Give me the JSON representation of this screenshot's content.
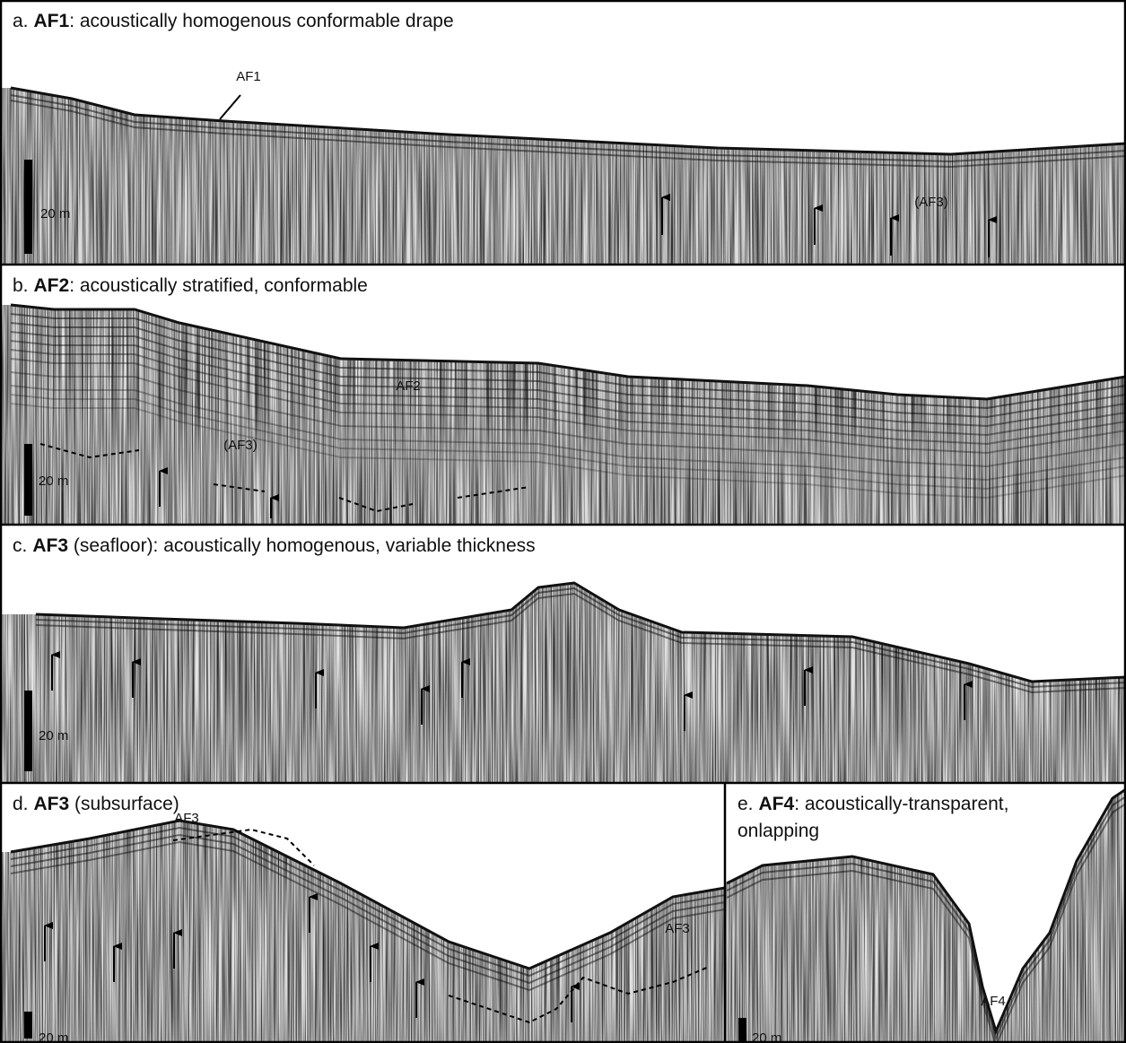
{
  "panels": [
    {
      "letter": "a.",
      "code": "AF1",
      "caption": ": acoustically homogenous conformable drape",
      "scale": "20 m",
      "labels": [
        "AF1",
        "(AF3)"
      ]
    },
    {
      "letter": "b.",
      "code": "AF2",
      "caption": ": acoustically stratified, conformable",
      "scale": "20 m",
      "labels": [
        "AF2",
        "(AF3)"
      ]
    },
    {
      "letter": "c.",
      "code": "AF3",
      "caption": " (seafloor): acoustically homogenous, variable thickness",
      "scale": "20 m",
      "labels": []
    },
    {
      "letter": "d.",
      "code": "AF3",
      "caption": " (subsurface)",
      "scale": "20 m",
      "labels": [
        "AF3",
        "AF3"
      ]
    },
    {
      "letter": "e.",
      "code": "AF4",
      "caption": ": acoustically-transparent,",
      "caption_line2": "onlapping",
      "scale": "20 m",
      "labels": [
        "AF4"
      ]
    }
  ]
}
